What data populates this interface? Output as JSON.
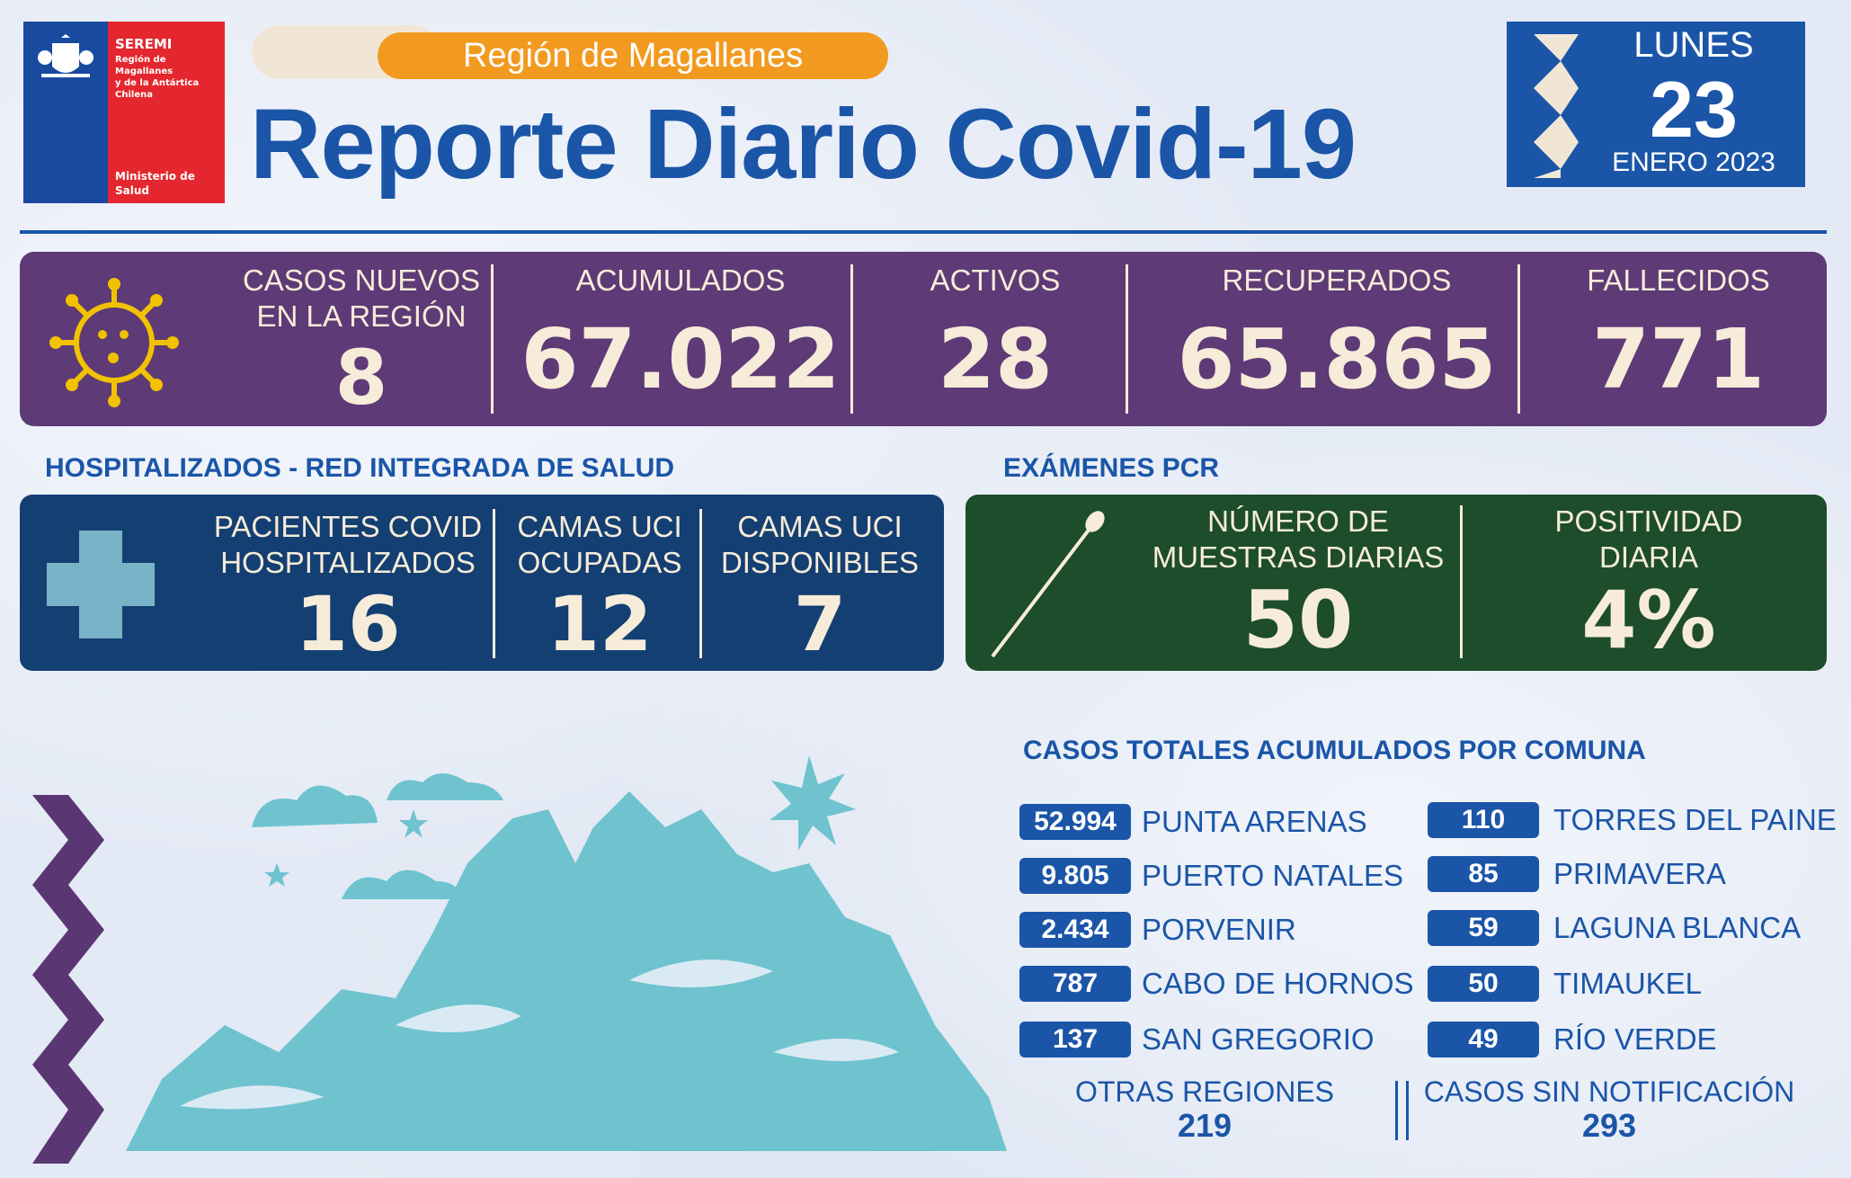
{
  "logo": {
    "seremi": "SEREMI",
    "region_lines": [
      "Región de Magallanes",
      "y de la Antártica",
      "Chilena"
    ],
    "ministry_lines": [
      "Ministerio de",
      "Salud"
    ]
  },
  "header": {
    "region": "Región de Magallanes",
    "title": "Reporte Diario Covid-19"
  },
  "date": {
    "weekday": "LUNES",
    "day": "23",
    "month_year": "ENERO 2023"
  },
  "summary": [
    {
      "label_lines": [
        "CASOS NUEVOS",
        "EN LA REGIÓN"
      ],
      "value": "8"
    },
    {
      "label_lines": [
        "ACUMULADOS"
      ],
      "value": "67.022"
    },
    {
      "label_lines": [
        "ACTIVOS"
      ],
      "value": "28"
    },
    {
      "label_lines": [
        "RECUPERADOS"
      ],
      "value": "65.865"
    },
    {
      "label_lines": [
        "FALLECIDOS"
      ],
      "value": "771"
    }
  ],
  "hospital": {
    "heading": "HOSPITALIZADOS - RED INTEGRADA DE SALUD",
    "items": [
      {
        "label_lines": [
          "PACIENTES COVID",
          "HOSPITALIZADOS"
        ],
        "value": "16"
      },
      {
        "label_lines": [
          "CAMAS UCI",
          "OCUPADAS"
        ],
        "value": "12"
      },
      {
        "label_lines": [
          "CAMAS UCI",
          "DISPONIBLES"
        ],
        "value": "7"
      }
    ]
  },
  "pcr": {
    "heading": "EXÁMENES PCR",
    "items": [
      {
        "label_lines": [
          "NÚMERO DE",
          "MUESTRAS DIARIAS"
        ],
        "value": "50"
      },
      {
        "label_lines": [
          "POSITIVIDAD",
          "DIARIA"
        ],
        "value": "4%"
      }
    ]
  },
  "comunas": {
    "heading": "CASOS TOTALES ACUMULADOS POR COMUNA",
    "left": [
      {
        "value": "52.994",
        "name": "PUNTA ARENAS"
      },
      {
        "value": "9.805",
        "name": "PUERTO NATALES"
      },
      {
        "value": "2.434",
        "name": "PORVENIR"
      },
      {
        "value": "787",
        "name": "CABO DE HORNOS"
      },
      {
        "value": "137",
        "name": "SAN GREGORIO"
      }
    ],
    "right": [
      {
        "value": "110",
        "name": "TORRES DEL PAINE"
      },
      {
        "value": "85",
        "name": "PRIMAVERA"
      },
      {
        "value": "59",
        "name": "LAGUNA BLANCA"
      },
      {
        "value": "50",
        "name": "TIMAUKEL"
      },
      {
        "value": "49",
        "name": "RÍO VERDE"
      }
    ],
    "otras": {
      "label": "OTRAS REGIONES",
      "value": "219"
    },
    "sin_notif": {
      "label": "CASOS SIN NOTIFICACIÓN",
      "value": "293"
    }
  },
  "colors": {
    "blue": "#1a55a8",
    "purple": "#5e3a76",
    "navy": "#143f73",
    "green": "#1d4d2b",
    "orange": "#f29a1f",
    "cream": "#f6ecd9",
    "mountain": "#6fc3cf"
  }
}
